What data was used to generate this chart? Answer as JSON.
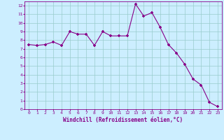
{
  "x": [
    0,
    1,
    2,
    3,
    4,
    5,
    6,
    7,
    8,
    9,
    10,
    11,
    12,
    13,
    14,
    15,
    16,
    17,
    18,
    19,
    20,
    21,
    22,
    23
  ],
  "y": [
    7.5,
    7.4,
    7.5,
    7.8,
    7.4,
    9.0,
    8.7,
    8.7,
    7.4,
    9.0,
    8.5,
    8.5,
    8.5,
    12.2,
    10.8,
    11.2,
    9.5,
    7.5,
    6.5,
    5.2,
    3.5,
    2.8,
    0.8,
    0.3
  ],
  "line_color": "#880088",
  "marker": "P",
  "bg_color": "#cceeff",
  "grid_color": "#99cccc",
  "xlabel": "Windchill (Refroidissement éolien,°C)",
  "xlabel_color": "#880088",
  "tick_color": "#880088",
  "spine_color": "#880088",
  "ylim": [
    0,
    12.5
  ],
  "xlim": [
    -0.5,
    23.5
  ],
  "yticks": [
    0,
    1,
    2,
    3,
    4,
    5,
    6,
    7,
    8,
    9,
    10,
    11,
    12
  ],
  "xticks": [
    0,
    1,
    2,
    3,
    4,
    5,
    6,
    7,
    8,
    9,
    10,
    11,
    12,
    13,
    14,
    15,
    16,
    17,
    18,
    19,
    20,
    21,
    22,
    23
  ]
}
